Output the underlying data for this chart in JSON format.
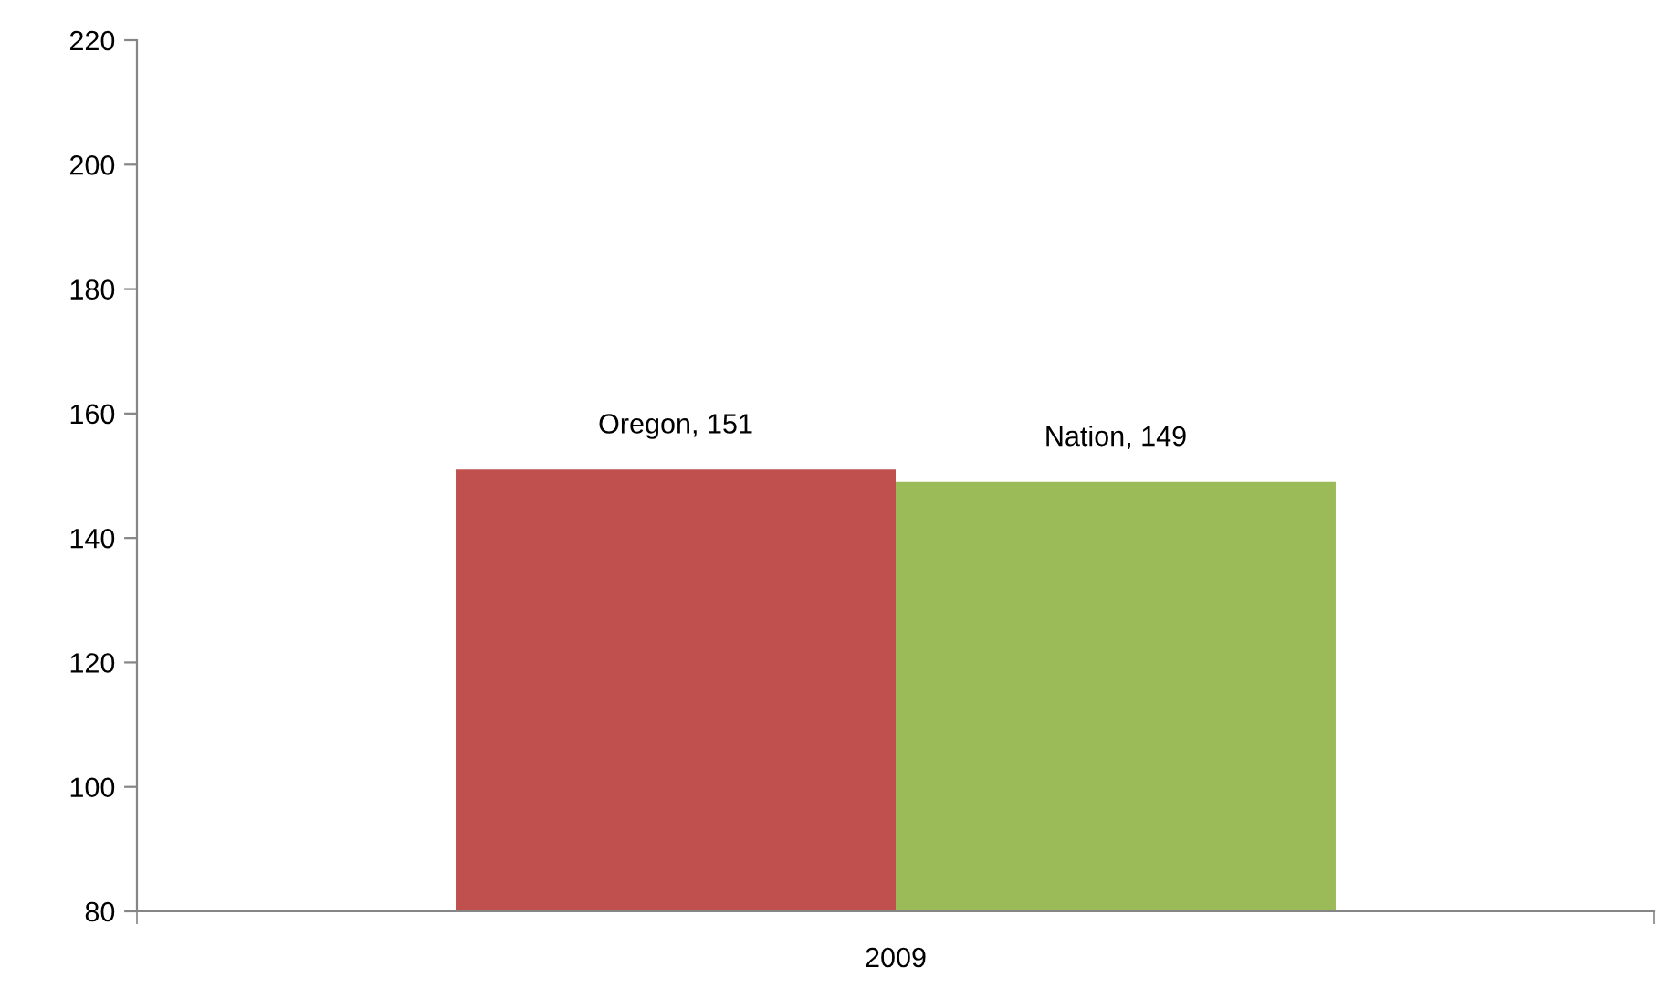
{
  "chart_data": {
    "type": "bar",
    "categories": [
      "2009"
    ],
    "series": [
      {
        "color": "#c0504d",
        "values": [
          151
        ],
        "value_labels": [
          "Oregon, 151"
        ]
      },
      {
        "color": "#9bbb59",
        "values": [
          149
        ],
        "value_labels": [
          "Nation, 149"
        ]
      }
    ],
    "ylim": [
      80,
      220
    ],
    "yticks": [
      80,
      100,
      120,
      140,
      160,
      180,
      200,
      220
    ],
    "grid": false
  }
}
